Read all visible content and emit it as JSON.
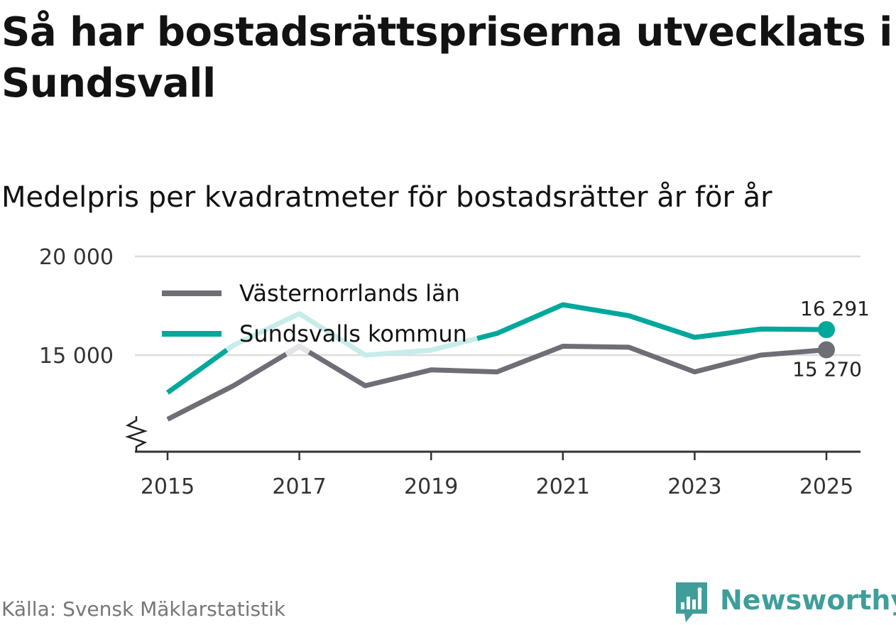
{
  "title": "Så har bostadsrättspriserna utvecklats i Sundsvall",
  "subtitle": "Medelpris per kvadratmeter för bostadsrätter år för år",
  "source": "Källa: Svensk Mäklarstatistik",
  "brand": "Newsworthy",
  "colors": {
    "lan": "#6f6e76",
    "kommun": "#00a79b",
    "kommun_faded": "#c7ecea",
    "grid": "#dddddd",
    "axis": "#333333",
    "brand": "#3f9e9a"
  },
  "chart_data": {
    "type": "line",
    "title": "Så har bostadsrättspriserna utvecklats i Sundsvall",
    "subtitle": "Medelpris per kvadratmeter för bostadsrätter år för år",
    "x": [
      2015,
      2016,
      2017,
      2018,
      2019,
      2020,
      2021,
      2022,
      2023,
      2024,
      2025
    ],
    "series": [
      {
        "name": "Västernorrlands län",
        "values": [
          11750,
          13450,
          15450,
          13450,
          14250,
          14150,
          15450,
          15400,
          14150,
          15000,
          15270
        ]
      },
      {
        "name": "Sundsvalls kommun",
        "values": [
          13100,
          15500,
          17100,
          15000,
          15250,
          16100,
          17550,
          17000,
          15900,
          16320,
          16291
        ]
      }
    ],
    "end_labels": [
      "15 270",
      "16 291"
    ],
    "y_ticks": [
      15000,
      20000
    ],
    "y_tick_labels": [
      "15 000",
      "20 000"
    ],
    "x_ticks": [
      2015,
      2017,
      2019,
      2021,
      2023,
      2025
    ],
    "x_tick_labels": [
      "2015",
      "2017",
      "2019",
      "2021",
      "2023",
      "2025"
    ],
    "ylim": [
      10000,
      20000
    ],
    "axis_break": true,
    "legend": "top-left",
    "xlabel": "",
    "ylabel": ""
  }
}
